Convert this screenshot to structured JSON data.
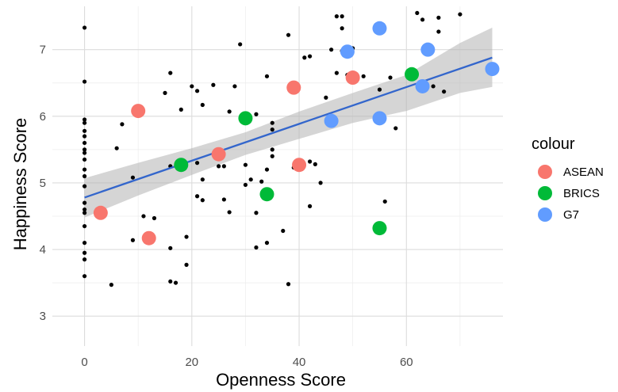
{
  "chart_data": {
    "type": "scatter",
    "xlabel": "Openness Score",
    "ylabel": "Happiness Score",
    "xlim": [
      -6,
      78
    ],
    "ylim": [
      2.55,
      7.65
    ],
    "x_ticks": [
      0,
      20,
      40,
      60
    ],
    "y_ticks": [
      3,
      4,
      5,
      6,
      7
    ],
    "x_tick_labels": [
      "0",
      "20",
      "40",
      "60"
    ],
    "y_tick_labels": [
      "3",
      "4",
      "5",
      "6",
      "7"
    ],
    "grid": true,
    "legend": {
      "title": "colour",
      "placement": "right",
      "entries": [
        {
          "label": "ASEAN",
          "color": "#f8766d"
        },
        {
          "label": "BRICS",
          "color": "#00ba38"
        },
        {
          "label": "G7",
          "color": "#619cff"
        }
      ]
    },
    "background_points": [
      [
        0,
        7.33
      ],
      [
        0,
        6.52
      ],
      [
        0,
        5.95
      ],
      [
        0,
        5.9
      ],
      [
        0,
        5.78
      ],
      [
        0,
        5.7
      ],
      [
        0,
        5.6
      ],
      [
        0,
        5.5
      ],
      [
        0,
        5.45
      ],
      [
        0,
        5.35
      ],
      [
        0,
        5.2
      ],
      [
        0,
        5.1
      ],
      [
        0,
        4.95
      ],
      [
        0,
        4.7
      ],
      [
        0,
        4.6
      ],
      [
        0,
        4.55
      ],
      [
        0,
        4.35
      ],
      [
        0,
        4.1
      ],
      [
        0,
        3.95
      ],
      [
        0,
        3.85
      ],
      [
        0,
        3.6
      ],
      [
        5,
        3.47
      ],
      [
        6,
        5.52
      ],
      [
        7,
        5.88
      ],
      [
        9,
        5.08
      ],
      [
        9,
        4.14
      ],
      [
        11,
        4.5
      ],
      [
        13,
        4.47
      ],
      [
        15,
        6.35
      ],
      [
        16,
        6.65
      ],
      [
        16,
        5.25
      ],
      [
        16,
        4.02
      ],
      [
        16,
        3.52
      ],
      [
        17,
        3.5
      ],
      [
        18,
        6.1
      ],
      [
        19,
        3.77
      ],
      [
        19,
        4.19
      ],
      [
        20,
        6.45
      ],
      [
        21,
        6.38
      ],
      [
        21,
        5.3
      ],
      [
        21,
        4.8
      ],
      [
        22,
        6.17
      ],
      [
        22,
        5.05
      ],
      [
        22,
        4.74
      ],
      [
        24,
        6.47
      ],
      [
        25,
        5.25
      ],
      [
        26,
        5.25
      ],
      [
        26,
        4.75
      ],
      [
        27,
        6.07
      ],
      [
        27,
        4.56
      ],
      [
        28,
        6.45
      ],
      [
        29,
        7.08
      ],
      [
        30,
        5.27
      ],
      [
        30,
        4.97
      ],
      [
        31,
        5.05
      ],
      [
        32,
        6.03
      ],
      [
        32,
        4.55
      ],
      [
        32,
        4.03
      ],
      [
        33,
        5.02
      ],
      [
        34,
        6.6
      ],
      [
        34,
        5.2
      ],
      [
        34,
        4.1
      ],
      [
        35,
        5.9
      ],
      [
        35,
        5.8
      ],
      [
        35,
        5.5
      ],
      [
        35,
        5.4
      ],
      [
        37,
        4.28
      ],
      [
        38,
        7.22
      ],
      [
        38,
        3.48
      ],
      [
        39,
        5.23
      ],
      [
        41,
        6.88
      ],
      [
        42,
        6.9
      ],
      [
        42,
        5.32
      ],
      [
        42,
        4.65
      ],
      [
        43,
        5.28
      ],
      [
        44,
        5.0
      ],
      [
        45,
        6.28
      ],
      [
        46,
        7.0
      ],
      [
        47,
        7.5
      ],
      [
        47,
        6.65
      ],
      [
        48,
        7.5
      ],
      [
        48,
        7.32
      ],
      [
        48,
        6.98
      ],
      [
        49,
        6.62
      ],
      [
        50,
        7.02
      ],
      [
        52,
        6.6
      ],
      [
        55,
        6.4
      ],
      [
        56,
        4.72
      ],
      [
        57,
        6.58
      ],
      [
        58,
        5.82
      ],
      [
        62,
        7.55
      ],
      [
        63,
        7.45
      ],
      [
        65,
        6.45
      ],
      [
        66,
        7.48
      ],
      [
        66,
        7.27
      ],
      [
        67,
        6.37
      ],
      [
        70,
        7.53
      ]
    ],
    "series": [
      {
        "name": "ASEAN",
        "color": "#f8766d",
        "points": [
          [
            3,
            4.55
          ],
          [
            10,
            6.08
          ],
          [
            12,
            4.17
          ],
          [
            25,
            5.43
          ],
          [
            39,
            6.43
          ],
          [
            40,
            5.27
          ],
          [
            50,
            6.58
          ]
        ]
      },
      {
        "name": "BRICS",
        "color": "#00ba38",
        "points": [
          [
            18,
            5.27
          ],
          [
            30,
            5.97
          ],
          [
            34,
            4.83
          ],
          [
            55,
            4.32
          ],
          [
            61,
            6.63
          ]
        ]
      },
      {
        "name": "G7",
        "color": "#619cff",
        "points": [
          [
            46,
            5.93
          ],
          [
            49,
            6.97
          ],
          [
            55,
            7.32
          ],
          [
            55,
            5.97
          ],
          [
            63,
            6.45
          ],
          [
            64,
            7.0
          ],
          [
            76,
            6.71
          ]
        ]
      }
    ],
    "trend": {
      "x_range": [
        0,
        76
      ],
      "y_fit": [
        4.78,
        6.88
      ],
      "color": "#3366cc",
      "ci": {
        "x": [
          0,
          10,
          20,
          30,
          40,
          50,
          60,
          70,
          76
        ],
        "upper": [
          5.07,
          5.3,
          5.52,
          5.76,
          6.07,
          6.35,
          6.62,
          7.1,
          7.33
        ],
        "lower": [
          4.48,
          4.81,
          5.12,
          5.42,
          5.66,
          5.9,
          6.08,
          6.35,
          6.44
        ]
      }
    }
  }
}
